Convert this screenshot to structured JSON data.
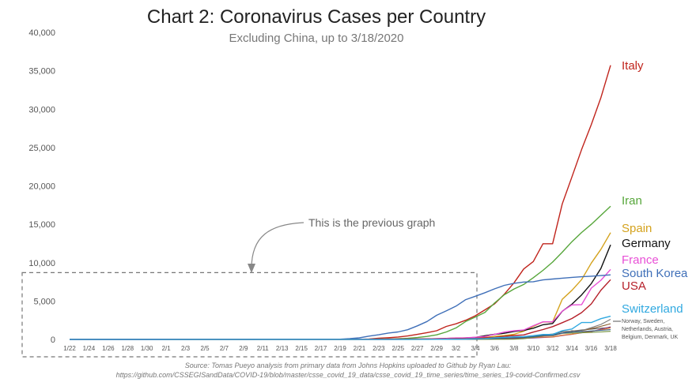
{
  "header": {
    "title": "Chart 2: Coronavirus Cases per Country",
    "subtitle": "Excluding China, up to 3/18/2020"
  },
  "source": {
    "line1": "Source: Tomas Pueyo analysis from primary data from Johns Hopkins uploaded to Github by Ryan Lau:",
    "line2": "https://github.com/CSSEGISandData/COVID-19/blob/master/csse_covid_19_data/csse_covid_19_time_series/time_series_19-covid-Confirmed.csv"
  },
  "annotation": {
    "text": "This is the previous graph"
  },
  "chart_data": {
    "type": "line",
    "title": "Chart 2: Coronavirus Cases per Country",
    "subtitle": "Excluding China, up to 3/18/2020",
    "xlabel": "",
    "ylabel": "",
    "ylim": [
      0,
      40000
    ],
    "yticks": [
      0,
      5000,
      10000,
      15000,
      20000,
      25000,
      30000,
      35000,
      40000
    ],
    "ytick_labels": [
      "0",
      "5,000",
      "10,000",
      "15,000",
      "20,000",
      "25,000",
      "30,000",
      "35,000",
      "40,000"
    ],
    "grid": false,
    "x": [
      "1/22",
      "1/23",
      "1/24",
      "1/25",
      "1/26",
      "1/27",
      "1/28",
      "1/29",
      "1/30",
      "1/31",
      "2/1",
      "2/2",
      "2/3",
      "2/4",
      "2/5",
      "2/6",
      "2/7",
      "2/8",
      "2/9",
      "2/10",
      "2/11",
      "2/12",
      "2/13",
      "2/14",
      "2/15",
      "2/16",
      "2/17",
      "2/18",
      "2/19",
      "2/20",
      "2/21",
      "2/22",
      "2/23",
      "2/24",
      "2/25",
      "2/26",
      "2/27",
      "2/28",
      "2/29",
      "3/1",
      "3/2",
      "3/3",
      "3/4",
      "3/5",
      "3/6",
      "3/7",
      "3/8",
      "3/9",
      "3/10",
      "3/11",
      "3/12",
      "3/13",
      "3/14",
      "3/15",
      "3/16",
      "3/17",
      "3/18"
    ],
    "x_tick_labels": [
      "1/22",
      "1/24",
      "1/26",
      "1/28",
      "1/30",
      "2/1",
      "2/3",
      "2/5",
      "2/7",
      "2/9",
      "2/11",
      "2/13",
      "2/15",
      "2/17",
      "2/19",
      "2/21",
      "2/23",
      "2/25",
      "2/27",
      "2/29",
      "3/2",
      "3/4",
      "3/6",
      "3/8",
      "3/10",
      "3/12",
      "3/14",
      "3/16",
      "3/18"
    ],
    "series": [
      {
        "name": "Italy",
        "color": "#c0241c",
        "labeled": true,
        "values": [
          0,
          0,
          0,
          0,
          0,
          0,
          0,
          0,
          0,
          2,
          2,
          2,
          2,
          2,
          2,
          3,
          3,
          3,
          3,
          3,
          3,
          3,
          3,
          3,
          3,
          3,
          3,
          3,
          3,
          3,
          20,
          62,
          155,
          229,
          322,
          453,
          655,
          888,
          1128,
          1694,
          2036,
          2502,
          3089,
          3858,
          4636,
          5883,
          7375,
          9172,
          10149,
          12462,
          12462,
          17660,
          21157,
          24747,
          27980,
          31506,
          35713
        ]
      },
      {
        "name": "Iran",
        "color": "#56a63a",
        "labeled": true,
        "values": [
          0,
          0,
          0,
          0,
          0,
          0,
          0,
          0,
          0,
          0,
          0,
          0,
          0,
          0,
          0,
          0,
          0,
          0,
          0,
          0,
          0,
          0,
          0,
          0,
          0,
          0,
          0,
          0,
          2,
          5,
          18,
          28,
          43,
          61,
          95,
          139,
          245,
          388,
          593,
          978,
          1501,
          2336,
          2922,
          3513,
          4747,
          5823,
          6566,
          7161,
          8042,
          9000,
          10075,
          11364,
          12729,
          13938,
          14991,
          16169,
          17361
        ]
      },
      {
        "name": "Spain",
        "color": "#d4a21d",
        "labeled": true,
        "values": [
          0,
          0,
          0,
          0,
          0,
          0,
          0,
          0,
          0,
          0,
          1,
          1,
          1,
          1,
          1,
          1,
          1,
          1,
          2,
          2,
          2,
          2,
          2,
          2,
          2,
          2,
          2,
          2,
          2,
          2,
          2,
          2,
          2,
          2,
          6,
          13,
          15,
          32,
          45,
          84,
          120,
          165,
          222,
          259,
          400,
          500,
          673,
          1073,
          1695,
          2277,
          2277,
          5232,
          6391,
          7798,
          9942,
          11748,
          13910
        ]
      },
      {
        "name": "Germany",
        "color": "#111111",
        "labeled": true,
        "values": [
          0,
          0,
          0,
          0,
          0,
          1,
          4,
          4,
          4,
          5,
          8,
          10,
          12,
          12,
          12,
          12,
          13,
          13,
          14,
          14,
          16,
          16,
          16,
          16,
          16,
          16,
          16,
          16,
          16,
          16,
          16,
          16,
          16,
          16,
          17,
          27,
          46,
          48,
          79,
          130,
          159,
          196,
          262,
          482,
          670,
          799,
          1040,
          1176,
          1457,
          1908,
          2078,
          3675,
          4585,
          5795,
          7272,
          9257,
          12327
        ]
      },
      {
        "name": "France",
        "color": "#e84fd6",
        "labeled": true,
        "values": [
          0,
          0,
          2,
          3,
          3,
          3,
          4,
          5,
          5,
          5,
          6,
          6,
          6,
          6,
          6,
          6,
          6,
          11,
          11,
          11,
          11,
          11,
          11,
          11,
          12,
          12,
          12,
          12,
          12,
          12,
          12,
          12,
          12,
          12,
          14,
          18,
          38,
          57,
          100,
          130,
          191,
          204,
          288,
          380,
          656,
          959,
          1136,
          1219,
          1794,
          2293,
          2293,
          3681,
          4496,
          4532,
          6683,
          7715,
          9124
        ]
      },
      {
        "name": "South Korea",
        "color": "#3f6fb8",
        "labeled": true,
        "values": [
          1,
          1,
          2,
          2,
          3,
          4,
          4,
          4,
          4,
          11,
          12,
          15,
          15,
          16,
          19,
          23,
          24,
          24,
          25,
          27,
          28,
          28,
          28,
          28,
          28,
          29,
          30,
          31,
          31,
          104,
          204,
          433,
          602,
          833,
          977,
          1261,
          1766,
          2337,
          3150,
          3736,
          4335,
          5186,
          5621,
          6088,
          6593,
          7041,
          7314,
          7478,
          7513,
          7755,
          7869,
          7979,
          8086,
          8162,
          8236,
          8320,
          8413
        ]
      },
      {
        "name": "USA",
        "color": "#b51f29",
        "labeled": true,
        "values": [
          1,
          1,
          2,
          2,
          5,
          5,
          5,
          5,
          5,
          7,
          8,
          8,
          11,
          11,
          11,
          11,
          11,
          11,
          11,
          11,
          12,
          12,
          13,
          13,
          13,
          13,
          13,
          13,
          13,
          13,
          15,
          15,
          15,
          51,
          51,
          57,
          58,
          60,
          68,
          74,
          98,
          118,
          149,
          217,
          262,
          402,
          518,
          583,
          959,
          1281,
          1663,
          2179,
          2726,
          3499,
          4632,
          6421,
          7786
        ]
      },
      {
        "name": "Switzerland",
        "color": "#31a9e0",
        "labeled": true,
        "values": [
          0,
          0,
          0,
          0,
          0,
          0,
          0,
          0,
          0,
          0,
          0,
          0,
          0,
          0,
          0,
          0,
          0,
          0,
          0,
          0,
          0,
          0,
          0,
          0,
          0,
          0,
          0,
          0,
          0,
          0,
          0,
          0,
          0,
          0,
          1,
          1,
          8,
          8,
          18,
          27,
          42,
          56,
          90,
          114,
          214,
          268,
          337,
          374,
          491,
          652,
          652,
          1139,
          1359,
          2200,
          2200,
          2700,
          3028
        ]
      },
      {
        "name": "Norway",
        "color": "#555555",
        "labeled": false,
        "values": [
          0,
          0,
          0,
          0,
          0,
          0,
          0,
          0,
          0,
          0,
          0,
          0,
          0,
          0,
          0,
          0,
          0,
          0,
          0,
          0,
          0,
          0,
          0,
          0,
          0,
          0,
          0,
          0,
          0,
          0,
          0,
          0,
          0,
          0,
          0,
          1,
          1,
          6,
          15,
          19,
          25,
          32,
          56,
          87,
          108,
          147,
          176,
          205,
          400,
          598,
          702,
          996,
          1090,
          1221,
          1333,
          1463,
          1550
        ]
      },
      {
        "name": "Netherlands",
        "color": "#8a5a2b",
        "labeled": false,
        "values": [
          0,
          0,
          0,
          0,
          0,
          0,
          0,
          0,
          0,
          0,
          0,
          0,
          0,
          0,
          0,
          0,
          0,
          0,
          0,
          0,
          0,
          0,
          0,
          0,
          0,
          0,
          0,
          0,
          0,
          0,
          0,
          0,
          0,
          0,
          0,
          0,
          1,
          1,
          6,
          10,
          18,
          24,
          38,
          82,
          128,
          188,
          265,
          321,
          382,
          503,
          503,
          804,
          959,
          1135,
          1413,
          1705,
          2051
        ]
      },
      {
        "name": "Austria",
        "color": "#8d3b8c",
        "labeled": false,
        "values": [
          0,
          0,
          0,
          0,
          0,
          0,
          0,
          0,
          0,
          0,
          0,
          0,
          0,
          0,
          0,
          0,
          0,
          0,
          0,
          0,
          0,
          0,
          0,
          0,
          0,
          0,
          0,
          0,
          0,
          0,
          0,
          0,
          0,
          0,
          2,
          2,
          3,
          3,
          9,
          14,
          18,
          21,
          29,
          41,
          55,
          79,
          104,
          131,
          182,
          246,
          302,
          504,
          655,
          860,
          1018,
          1332,
          1646
        ]
      },
      {
        "name": "Belgium",
        "color": "#e87b2a",
        "labeled": false,
        "values": [
          0,
          0,
          0,
          0,
          0,
          0,
          0,
          0,
          0,
          0,
          0,
          0,
          0,
          0,
          1,
          1,
          1,
          1,
          1,
          1,
          1,
          1,
          1,
          1,
          1,
          1,
          1,
          1,
          1,
          1,
          1,
          1,
          1,
          1,
          1,
          1,
          1,
          1,
          1,
          2,
          8,
          13,
          23,
          50,
          109,
          169,
          200,
          239,
          267,
          314,
          314,
          559,
          689,
          886,
          1058,
          1243,
          1486
        ]
      },
      {
        "name": "Denmark",
        "color": "#6f8f3a",
        "labeled": false,
        "values": [
          0,
          0,
          0,
          0,
          0,
          0,
          0,
          0,
          0,
          0,
          0,
          0,
          0,
          0,
          0,
          0,
          0,
          0,
          0,
          0,
          0,
          0,
          0,
          0,
          0,
          0,
          0,
          0,
          0,
          0,
          0,
          0,
          0,
          0,
          0,
          0,
          1,
          1,
          3,
          4,
          4,
          6,
          10,
          10,
          23,
          23,
          35,
          90,
          262,
          442,
          615,
          801,
          827,
          864,
          914,
          977,
          1057
        ]
      },
      {
        "name": "UK",
        "color": "#7a7a7a",
        "labeled": false,
        "values": [
          0,
          0,
          0,
          0,
          0,
          0,
          0,
          0,
          0,
          2,
          2,
          2,
          2,
          2,
          2,
          2,
          3,
          3,
          3,
          8,
          8,
          9,
          9,
          9,
          9,
          9,
          9,
          9,
          9,
          9,
          9,
          9,
          9,
          13,
          13,
          13,
          15,
          20,
          23,
          36,
          40,
          51,
          85,
          115,
          163,
          206,
          273,
          321,
          382,
          456,
          456,
          798,
          1140,
          1140,
          1543,
          1950,
          2626
        ]
      },
      {
        "name": "Sweden",
        "color": "#2f5d8a",
        "labeled": false,
        "values": [
          0,
          0,
          0,
          0,
          0,
          0,
          0,
          0,
          0,
          0,
          1,
          1,
          1,
          1,
          1,
          1,
          1,
          1,
          1,
          1,
          1,
          1,
          1,
          1,
          1,
          1,
          1,
          1,
          1,
          1,
          1,
          1,
          1,
          1,
          1,
          2,
          7,
          7,
          12,
          14,
          15,
          21,
          35,
          94,
          101,
          161,
          203,
          248,
          355,
          500,
          599,
          814,
          961,
          1022,
          1103,
          1190,
          1279
        ]
      }
    ],
    "legend_labels": [
      {
        "series": "Italy",
        "text": "Italy",
        "color": "#c0241c"
      },
      {
        "series": "Iran",
        "text": "Iran",
        "color": "#56a63a"
      },
      {
        "series": "Spain",
        "text": "Spain",
        "color": "#d4a21d"
      },
      {
        "series": "Germany",
        "text": "Germany",
        "color": "#111111"
      },
      {
        "series": "France",
        "text": "France",
        "color": "#e84fd6"
      },
      {
        "series": "South Korea",
        "text": "South Korea",
        "color": "#3f6fb8"
      },
      {
        "series": "USA",
        "text": "USA",
        "color": "#b51f29"
      },
      {
        "series": "Switzerland",
        "text": "Switzerland",
        "color": "#31a9e0"
      }
    ],
    "others_label": {
      "lines": [
        "Norway, Sweden,",
        "Netherlands, Austria,",
        "Belgium, Denmark, UK"
      ],
      "color": "#555555"
    },
    "highlight_box": {
      "x_range": [
        "1/22",
        "3/4"
      ],
      "y_range": [
        0,
        8700
      ],
      "label": "This is the previous graph"
    }
  }
}
